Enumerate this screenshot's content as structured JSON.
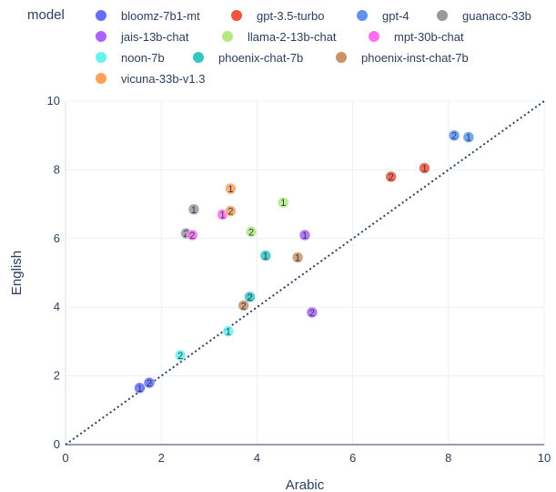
{
  "chart_data": {
    "type": "scatter",
    "xlabel": "Arabic",
    "ylabel": "English",
    "xlim": [
      0,
      10
    ],
    "ylim": [
      0,
      10
    ],
    "xticks": [
      0,
      2,
      4,
      6,
      8,
      10
    ],
    "yticks": [
      0,
      2,
      4,
      6,
      8,
      10
    ],
    "grid": true,
    "reference_line": {
      "style": "dotted",
      "color": "#2a3f5f",
      "from": [
        0,
        0
      ],
      "to": [
        10,
        10
      ]
    },
    "legend": {
      "title": "model",
      "placement": "top",
      "entries": [
        "bloomz-7b1-mt",
        "gpt-3.5-turbo",
        "gpt-4",
        "guanaco-33b",
        "jais-13b-chat",
        "llama-2-13b-chat",
        "mpt-30b-chat",
        "noon-7b",
        "phoenix-chat-7b",
        "phoenix-inst-chat-7b",
        "vicuna-33b-v1.3"
      ]
    },
    "series": [
      {
        "name": "bloomz-7b1-mt",
        "color": "#636efa",
        "points": [
          {
            "x": 1.55,
            "y": 1.65,
            "label": "1"
          },
          {
            "x": 1.75,
            "y": 1.8,
            "label": "2"
          }
        ]
      },
      {
        "name": "gpt-3.5-turbo",
        "color": "#ef553b",
        "points": [
          {
            "x": 7.5,
            "y": 8.05,
            "label": "1"
          },
          {
            "x": 6.8,
            "y": 7.8,
            "label": "2"
          }
        ]
      },
      {
        "name": "gpt-4",
        "color": "#5c94f0",
        "points": [
          {
            "x": 8.42,
            "y": 8.95,
            "label": "1"
          },
          {
            "x": 8.12,
            "y": 9.0,
            "label": "2"
          }
        ]
      },
      {
        "name": "guanaco-33b",
        "color": "#999999",
        "points": [
          {
            "x": 2.68,
            "y": 6.85,
            "label": "1"
          },
          {
            "x": 2.52,
            "y": 6.15,
            "label": "2"
          }
        ]
      },
      {
        "name": "jais-13b-chat",
        "color": "#ab63fa",
        "points": [
          {
            "x": 5.0,
            "y": 6.1,
            "label": "1"
          },
          {
            "x": 5.15,
            "y": 3.85,
            "label": "2"
          }
        ]
      },
      {
        "name": "llama-2-13b-chat",
        "color": "#b6e880",
        "points": [
          {
            "x": 4.55,
            "y": 7.05,
            "label": "1"
          },
          {
            "x": 3.88,
            "y": 6.2,
            "label": "2"
          }
        ]
      },
      {
        "name": "mpt-30b-chat",
        "color": "#ff6ff0",
        "points": [
          {
            "x": 3.28,
            "y": 6.7,
            "label": "1"
          },
          {
            "x": 2.65,
            "y": 6.1,
            "label": "2"
          }
        ]
      },
      {
        "name": "noon-7b",
        "color": "#65f3f0",
        "points": [
          {
            "x": 3.4,
            "y": 3.3,
            "label": "1"
          },
          {
            "x": 2.4,
            "y": 2.6,
            "label": "2"
          }
        ]
      },
      {
        "name": "phoenix-chat-7b",
        "color": "#35c5c2",
        "points": [
          {
            "x": 4.18,
            "y": 5.5,
            "label": "1"
          },
          {
            "x": 3.85,
            "y": 4.3,
            "label": "2"
          }
        ]
      },
      {
        "name": "phoenix-inst-chat-7b",
        "color": "#c89466",
        "points": [
          {
            "x": 4.85,
            "y": 5.45,
            "label": "1"
          },
          {
            "x": 3.72,
            "y": 4.05,
            "label": "2"
          }
        ]
      },
      {
        "name": "vicuna-33b-v1.3",
        "color": "#ffa15a",
        "points": [
          {
            "x": 3.45,
            "y": 7.45,
            "label": "1"
          },
          {
            "x": 3.45,
            "y": 6.8,
            "label": "2"
          }
        ]
      }
    ]
  }
}
